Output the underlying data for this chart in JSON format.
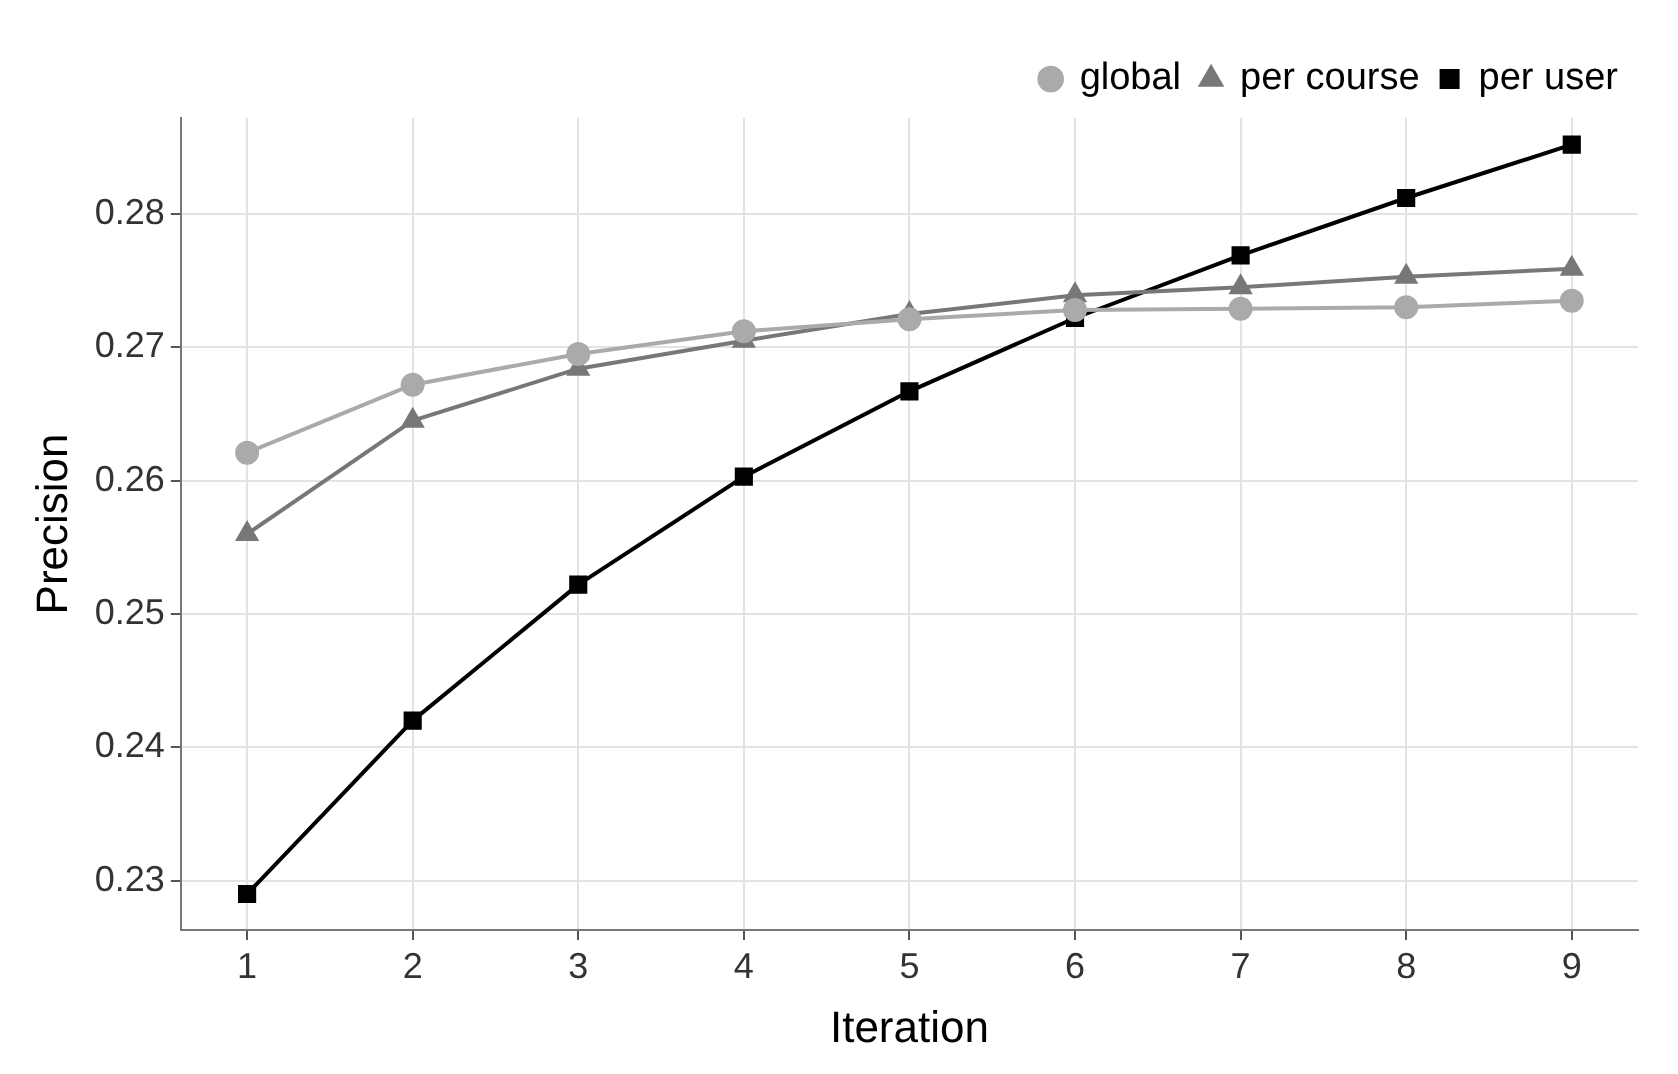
{
  "chart_data": {
    "type": "line",
    "xlabel": "Iteration",
    "ylabel": "Precision",
    "x": [
      1,
      2,
      3,
      4,
      5,
      6,
      7,
      8,
      9
    ],
    "xlim": [
      0.6,
      9.4
    ],
    "xticks": [
      1,
      2,
      3,
      4,
      5,
      6,
      7,
      8,
      9
    ],
    "ylim": [
      0.2263,
      0.2872
    ],
    "yticks": [
      0.23,
      0.24,
      0.25,
      0.26,
      0.27,
      0.28
    ],
    "grid": true,
    "legend": "top",
    "series": [
      {
        "name": "global",
        "color": "#aaaaaa",
        "marker": "circle",
        "values": [
          0.2621,
          0.2672,
          0.2695,
          0.2712,
          0.2721,
          0.2728,
          0.2729,
          0.273,
          0.2735
        ]
      },
      {
        "name": "per course",
        "color": "#777777",
        "marker": "triangle",
        "values": [
          0.256,
          0.2645,
          0.2684,
          0.2705,
          0.2725,
          0.2739,
          0.2745,
          0.2753,
          0.2759
        ]
      },
      {
        "name": "per user",
        "color": "#000000",
        "marker": "square",
        "values": [
          0.229,
          0.242,
          0.2522,
          0.2603,
          0.2667,
          0.2722,
          0.2769,
          0.2812,
          0.2852
        ]
      }
    ]
  }
}
